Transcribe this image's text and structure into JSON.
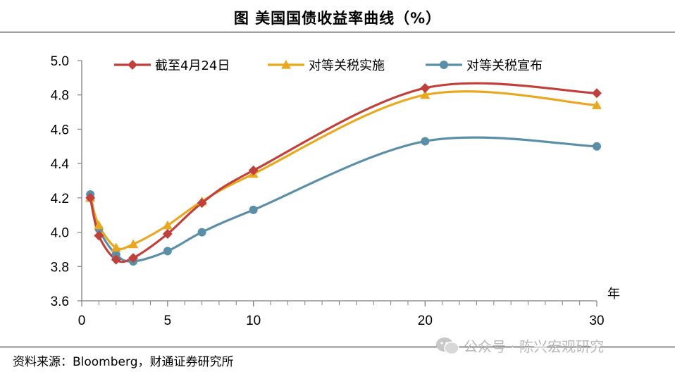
{
  "title": "图  美国国债收益率曲线（%）",
  "source": "资料来源：Bloomberg，财通证券研究所",
  "watermark": "公众号 · 陈兴宏观研究",
  "chart_data": {
    "type": "line",
    "title": "图  美国国债收益率曲线（%）",
    "xlabel": "年",
    "ylabel": "",
    "xlim": [
      0,
      30
    ],
    "ylim": [
      3.6,
      5.0
    ],
    "x_ticks": [
      0,
      5,
      10,
      20,
      30
    ],
    "y_ticks": [
      3.6,
      3.8,
      4.0,
      4.2,
      4.4,
      4.6,
      4.8,
      5.0
    ],
    "x": [
      0.5,
      1,
      2,
      3,
      5,
      7,
      10,
      20,
      30
    ],
    "grid": false,
    "legend_position": "top",
    "series": [
      {
        "name": "截至4月24日",
        "color": "#c0413c",
        "marker": "diamond",
        "values": [
          4.2,
          3.98,
          3.84,
          3.85,
          3.99,
          4.17,
          4.36,
          4.84,
          4.81
        ]
      },
      {
        "name": "对等关税实施",
        "color": "#e8a820",
        "marker": "triangle",
        "values": [
          4.2,
          4.04,
          3.91,
          3.93,
          4.04,
          4.18,
          4.34,
          4.8,
          4.74
        ]
      },
      {
        "name": "对等关税宣布",
        "color": "#5b8fa8",
        "marker": "circle",
        "values": [
          4.22,
          4.02,
          3.87,
          3.83,
          3.89,
          4.0,
          4.13,
          4.53,
          4.5
        ]
      }
    ]
  }
}
